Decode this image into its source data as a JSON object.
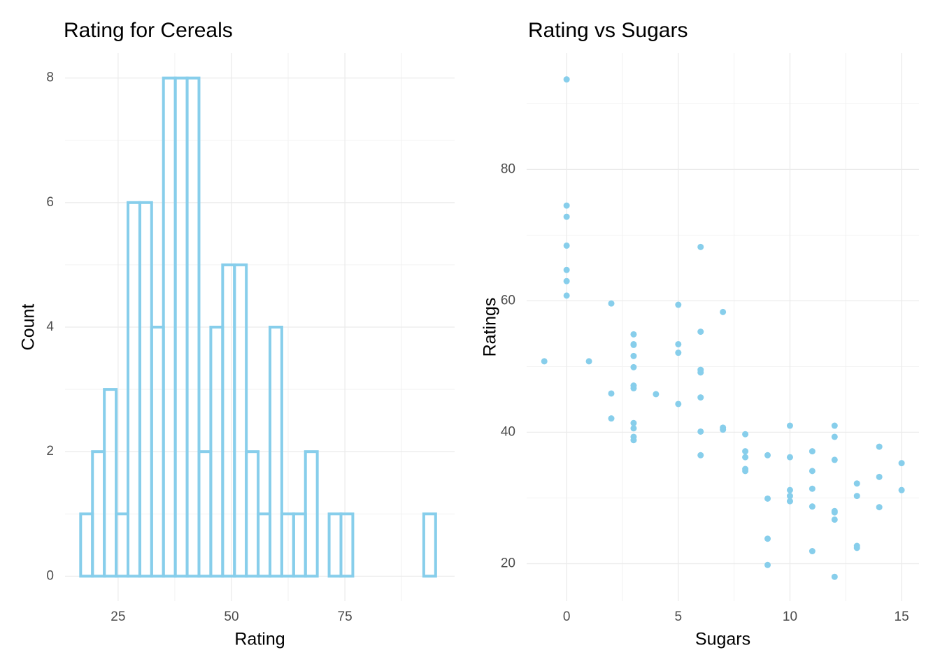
{
  "chart_data": [
    {
      "type": "histogram",
      "title": "Rating for Cereals",
      "x_label": "Rating",
      "y_label": "Count",
      "bins": [
        16.74,
        19.35,
        21.96,
        24.57,
        27.18,
        29.79,
        32.39,
        35.0,
        37.61,
        40.22,
        42.83,
        45.44,
        48.05,
        50.66,
        53.27,
        55.88,
        58.49,
        61.09,
        63.7,
        66.31,
        68.92,
        71.53,
        74.14,
        76.75,
        79.36,
        81.97,
        84.58,
        87.19,
        89.79,
        92.4,
        95.01
      ],
      "values": [
        1,
        2,
        3,
        1,
        6,
        6,
        4,
        8,
        8,
        8,
        2,
        4,
        5,
        5,
        2,
        1,
        4,
        1,
        1,
        2,
        0,
        1,
        1,
        0,
        0,
        0,
        0,
        0,
        0,
        1
      ],
      "color": "#87CEEB",
      "xlim": [
        13.3,
        99.2
      ],
      "ylim": [
        -0.4,
        8.4
      ],
      "xticks": [
        25,
        50,
        75
      ],
      "yticks": [
        0,
        2,
        4,
        6,
        8
      ],
      "grid": true
    },
    {
      "type": "scatter",
      "title": "Rating vs Sugars",
      "x_label": "Sugars",
      "y_label": "Ratings",
      "x": [
        -1,
        0,
        0,
        0,
        0,
        0,
        0,
        0,
        1,
        2,
        2,
        2,
        3,
        3,
        3,
        3,
        3,
        3,
        3,
        3,
        3,
        3,
        3,
        4,
        5,
        5,
        5,
        5,
        6,
        6,
        6,
        6,
        6,
        6,
        6,
        7,
        7,
        7,
        8,
        8,
        8,
        8,
        8,
        9,
        9,
        9,
        9,
        10,
        10,
        10,
        10,
        10,
        11,
        11,
        11,
        11,
        11,
        12,
        12,
        12,
        12,
        12,
        12,
        12,
        13,
        13,
        13,
        13,
        14,
        14,
        14,
        15,
        15
      ],
      "y": [
        50.8,
        93.7,
        74.5,
        72.8,
        68.4,
        64.7,
        63.0,
        60.8,
        50.8,
        59.6,
        45.9,
        42.1,
        54.9,
        53.4,
        53.3,
        51.6,
        49.9,
        47.1,
        46.7,
        41.4,
        40.6,
        39.3,
        38.8,
        45.8,
        59.4,
        53.4,
        52.1,
        44.3,
        68.2,
        55.3,
        49.5,
        49.1,
        45.3,
        40.1,
        36.5,
        58.3,
        40.7,
        40.4,
        39.7,
        37.1,
        36.2,
        34.4,
        34.1,
        36.5,
        29.9,
        23.8,
        19.8,
        41.0,
        36.2,
        31.2,
        30.3,
        29.5,
        37.1,
        34.1,
        31.4,
        28.7,
        21.9,
        41.0,
        39.3,
        35.8,
        28.0,
        27.8,
        26.7,
        18.0,
        32.2,
        30.3,
        22.7,
        22.4,
        37.8,
        33.2,
        28.6,
        35.3,
        31.2
      ],
      "color": "#87CEEB",
      "xlim": [
        -1.79,
        15.78
      ],
      "ylim": [
        14.3,
        97.7
      ],
      "xticks": [
        0,
        5,
        10,
        15
      ],
      "yticks": [
        20,
        40,
        60,
        80
      ],
      "grid": true
    }
  ]
}
